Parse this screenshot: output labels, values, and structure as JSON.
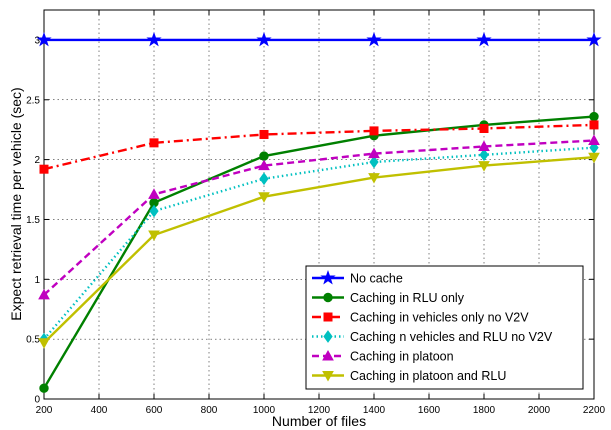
{
  "chart_data": {
    "type": "line",
    "xlabel": "Number of files",
    "ylabel": "Expect retrieval time per vehicle (sec)",
    "xlim": [
      200,
      2200
    ],
    "ylim": [
      0,
      3.25
    ],
    "x_ticks": [
      "200",
      "400",
      "600",
      "800",
      "1000",
      "1200",
      "1400",
      "1600",
      "1800",
      "2000",
      "2200"
    ],
    "y_ticks": [
      "0",
      "0.5",
      "1",
      "1.5",
      "2",
      "2.5",
      "3"
    ],
    "x_tick_values": [
      200,
      400,
      600,
      800,
      1000,
      1200,
      1400,
      1600,
      1800,
      2000,
      2200
    ],
    "y_tick_values": [
      0,
      0.5,
      1,
      1.5,
      2,
      2.5,
      3
    ],
    "grid": true,
    "legend_position": "bottom-right",
    "x": [
      200,
      600,
      1000,
      1400,
      1800,
      2200
    ],
    "series": [
      {
        "name": "No cache",
        "values": [
          3.0,
          3.0,
          3.0,
          3.0,
          3.0,
          3.0
        ],
        "color": "#0000ff",
        "dash": "solid",
        "marker": "star"
      },
      {
        "name": "Caching in RLU only",
        "values": [
          0.09,
          1.64,
          2.03,
          2.2,
          2.29,
          2.36
        ],
        "color": "#008000",
        "dash": "solid",
        "marker": "circle"
      },
      {
        "name": "Caching in vehicles only no  V2V",
        "values": [
          1.92,
          2.14,
          2.21,
          2.24,
          2.26,
          2.29
        ],
        "color": "#ff0000",
        "dash": "dashdot",
        "marker": "square"
      },
      {
        "name": "Caching n vehicles and RLU no V2V",
        "values": [
          0.5,
          1.57,
          1.84,
          1.98,
          2.04,
          2.1
        ],
        "color": "#00c0c0",
        "dash": "dotted",
        "marker": "diamond"
      },
      {
        "name": "Caching in platoon",
        "values": [
          0.87,
          1.71,
          1.95,
          2.05,
          2.11,
          2.16
        ],
        "color": "#c000c0",
        "dash": "dashed",
        "marker": "triangle-up"
      },
      {
        "name": "Caching in platoon and RLU",
        "values": [
          0.47,
          1.37,
          1.69,
          1.85,
          1.95,
          2.02
        ],
        "color": "#c0c000",
        "dash": "solid",
        "marker": "triangle-down"
      }
    ]
  }
}
